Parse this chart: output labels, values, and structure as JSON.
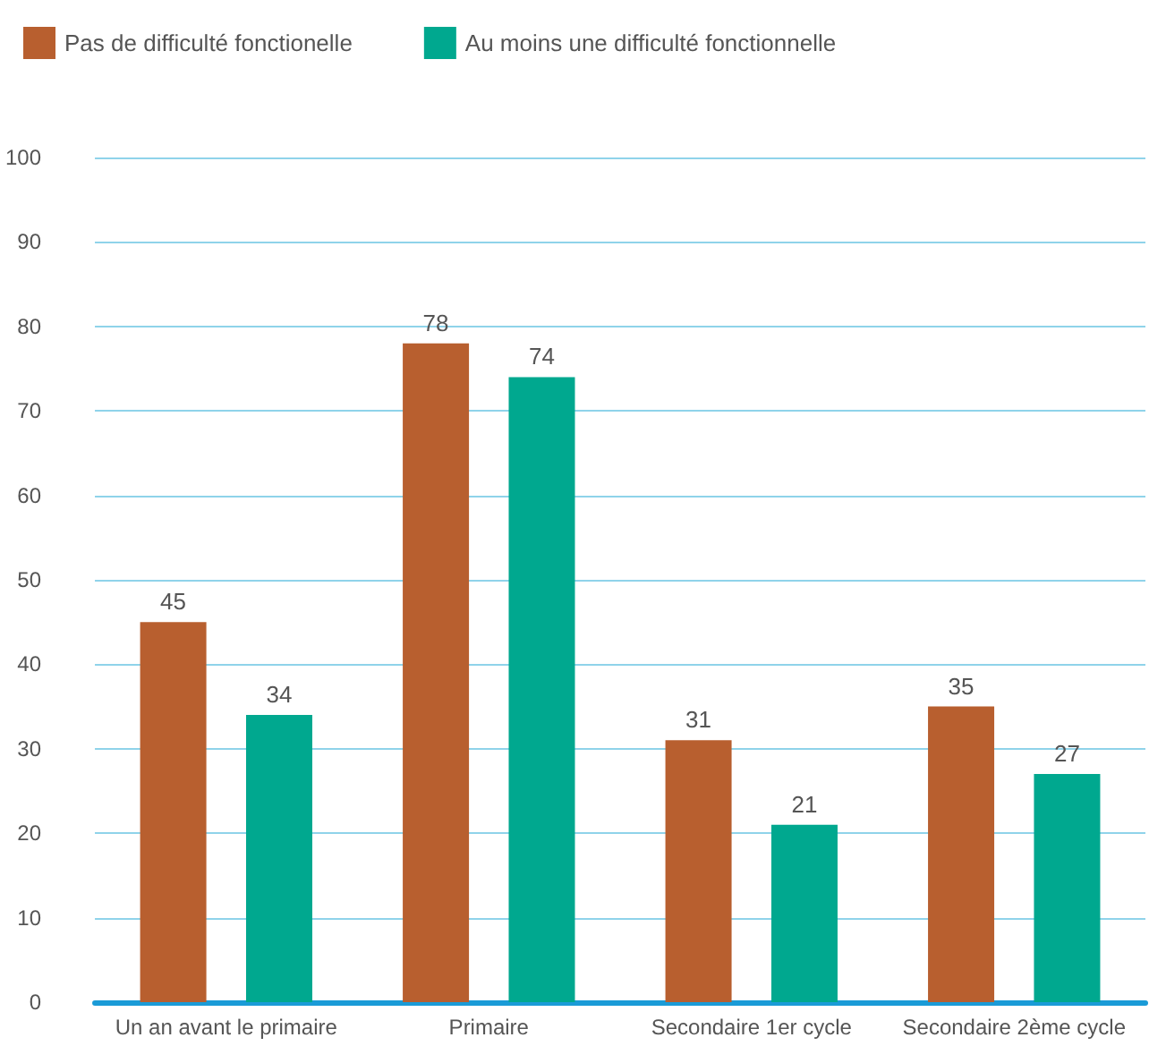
{
  "chart_data": {
    "type": "bar",
    "categories": [
      "Un an avant le primaire",
      "Primaire",
      "Secondaire 1er cycle",
      "Secondaire 2ème cycle"
    ],
    "series": [
      {
        "name": "Pas de difficulté fonctionelle",
        "color": "#b85f2f",
        "values": [
          45,
          78,
          31,
          35
        ]
      },
      {
        "name": "Au moins une difficulté fonctionnelle",
        "color": "#00a88f",
        "values": [
          34,
          74,
          21,
          27
        ]
      }
    ],
    "ylim": [
      0,
      100
    ],
    "yticks": [
      0,
      10,
      20,
      30,
      40,
      50,
      60,
      70,
      80,
      90,
      100
    ],
    "grid": "y",
    "legend": "top left",
    "data_labels": true
  }
}
